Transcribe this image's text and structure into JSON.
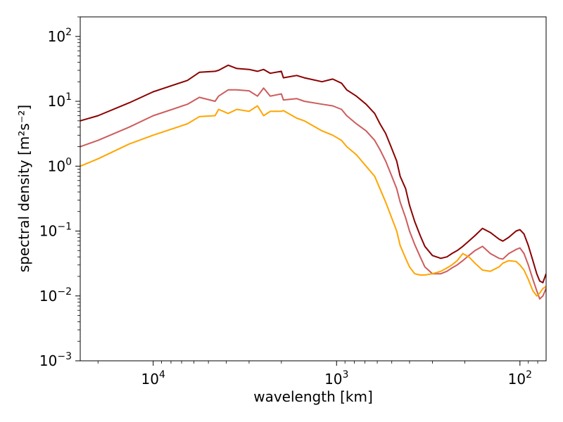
{
  "chart_data": {
    "type": "line",
    "xlabel": "wavelength [km]",
    "ylabel": "spectral density [m²s⁻²]",
    "x_scale": "log",
    "x_reversed": true,
    "y_scale": "log",
    "xlim": [
      25000,
      72
    ],
    "ylim": [
      0.001,
      200
    ],
    "grid": false,
    "x_ticks": [
      {
        "value": 10000,
        "base": "10",
        "exp": "4"
      },
      {
        "value": 1000,
        "base": "10",
        "exp": "3"
      },
      {
        "value": 100,
        "base": "10",
        "exp": "2"
      }
    ],
    "y_ticks": [
      {
        "value": 0.001,
        "base": "10",
        "exp": "−3"
      },
      {
        "value": 0.01,
        "base": "10",
        "exp": "−2"
      },
      {
        "value": 0.1,
        "base": "10",
        "exp": "−1"
      },
      {
        "value": 1,
        "base": "10",
        "exp": "0"
      },
      {
        "value": 10,
        "base": "10",
        "exp": "1"
      },
      {
        "value": 100,
        "base": "10",
        "exp": "2"
      }
    ],
    "series": [
      {
        "color": "#8b0000",
        "x": [
          25000,
          20000,
          13500,
          10000,
          6500,
          5600,
          4600,
          4400,
          3900,
          3500,
          3000,
          2700,
          2500,
          2300,
          2000,
          1950,
          1650,
          1500,
          1200,
          1050,
          940,
          880,
          780,
          690,
          620,
          580,
          540,
          505,
          470,
          450,
          420,
          400,
          375,
          350,
          330,
          300,
          270,
          250,
          235,
          220,
          205,
          190,
          176,
          160,
          145,
          130,
          124,
          115,
          105,
          100,
          95,
          90,
          85,
          81,
          78,
          75,
          72
        ],
        "y": [
          5.0,
          6.0,
          9.5,
          14.0,
          21,
          28,
          29,
          30,
          36,
          32,
          31,
          29,
          31,
          27,
          29,
          23,
          25,
          23,
          20,
          22,
          19,
          15,
          12,
          9.0,
          6.5,
          4.5,
          3.2,
          2.0,
          1.2,
          0.7,
          0.45,
          0.25,
          0.14,
          0.085,
          0.058,
          0.042,
          0.038,
          0.04,
          0.045,
          0.05,
          0.058,
          0.07,
          0.085,
          0.11,
          0.095,
          0.075,
          0.07,
          0.08,
          0.1,
          0.105,
          0.09,
          0.06,
          0.035,
          0.022,
          0.017,
          0.016,
          0.022
        ]
      },
      {
        "color": "#cd5c5c",
        "x": [
          25000,
          20000,
          13500,
          10000,
          6500,
          5600,
          4600,
          4400,
          3900,
          3500,
          3000,
          2700,
          2500,
          2300,
          2000,
          1950,
          1650,
          1500,
          1200,
          1050,
          940,
          880,
          780,
          690,
          620,
          580,
          540,
          505,
          470,
          450,
          420,
          400,
          375,
          350,
          330,
          300,
          270,
          250,
          235,
          220,
          205,
          190,
          176,
          160,
          145,
          130,
          124,
          115,
          105,
          100,
          95,
          90,
          85,
          81,
          78,
          75,
          72
        ],
        "y": [
          2.0,
          2.5,
          4.0,
          6.0,
          9.0,
          11.5,
          10.0,
          12.0,
          15.0,
          15.0,
          14.5,
          12.0,
          16.0,
          12.0,
          13.0,
          10.5,
          11.0,
          10.0,
          9.0,
          8.5,
          7.5,
          6.0,
          4.5,
          3.5,
          2.5,
          1.8,
          1.2,
          0.75,
          0.45,
          0.28,
          0.16,
          0.1,
          0.062,
          0.04,
          0.028,
          0.022,
          0.022,
          0.024,
          0.027,
          0.03,
          0.035,
          0.042,
          0.05,
          0.058,
          0.045,
          0.038,
          0.037,
          0.045,
          0.052,
          0.055,
          0.045,
          0.03,
          0.018,
          0.012,
          0.009,
          0.01,
          0.013
        ]
      },
      {
        "color": "#ffa500",
        "x": [
          25000,
          20000,
          13500,
          10000,
          6500,
          5600,
          4600,
          4400,
          3900,
          3500,
          3000,
          2700,
          2500,
          2300,
          2000,
          1950,
          1650,
          1500,
          1200,
          1050,
          940,
          880,
          780,
          690,
          620,
          580,
          540,
          505,
          470,
          450,
          420,
          400,
          375,
          350,
          330,
          300,
          270,
          250,
          235,
          220,
          205,
          190,
          176,
          160,
          145,
          130,
          124,
          115,
          105,
          100,
          95,
          90,
          85,
          81,
          78,
          75,
          72
        ],
        "y": [
          1.0,
          1.3,
          2.2,
          3.0,
          4.5,
          5.8,
          6.0,
          7.5,
          6.5,
          7.5,
          7.0,
          8.5,
          6.0,
          7.0,
          7.0,
          7.2,
          5.5,
          5.0,
          3.5,
          3.0,
          2.5,
          2.0,
          1.5,
          1.0,
          0.7,
          0.45,
          0.28,
          0.17,
          0.1,
          0.06,
          0.038,
          0.028,
          0.022,
          0.021,
          0.021,
          0.022,
          0.024,
          0.027,
          0.03,
          0.035,
          0.045,
          0.04,
          0.032,
          0.025,
          0.024,
          0.028,
          0.032,
          0.035,
          0.034,
          0.03,
          0.025,
          0.018,
          0.012,
          0.01,
          0.011,
          0.013,
          0.014
        ]
      }
    ]
  }
}
